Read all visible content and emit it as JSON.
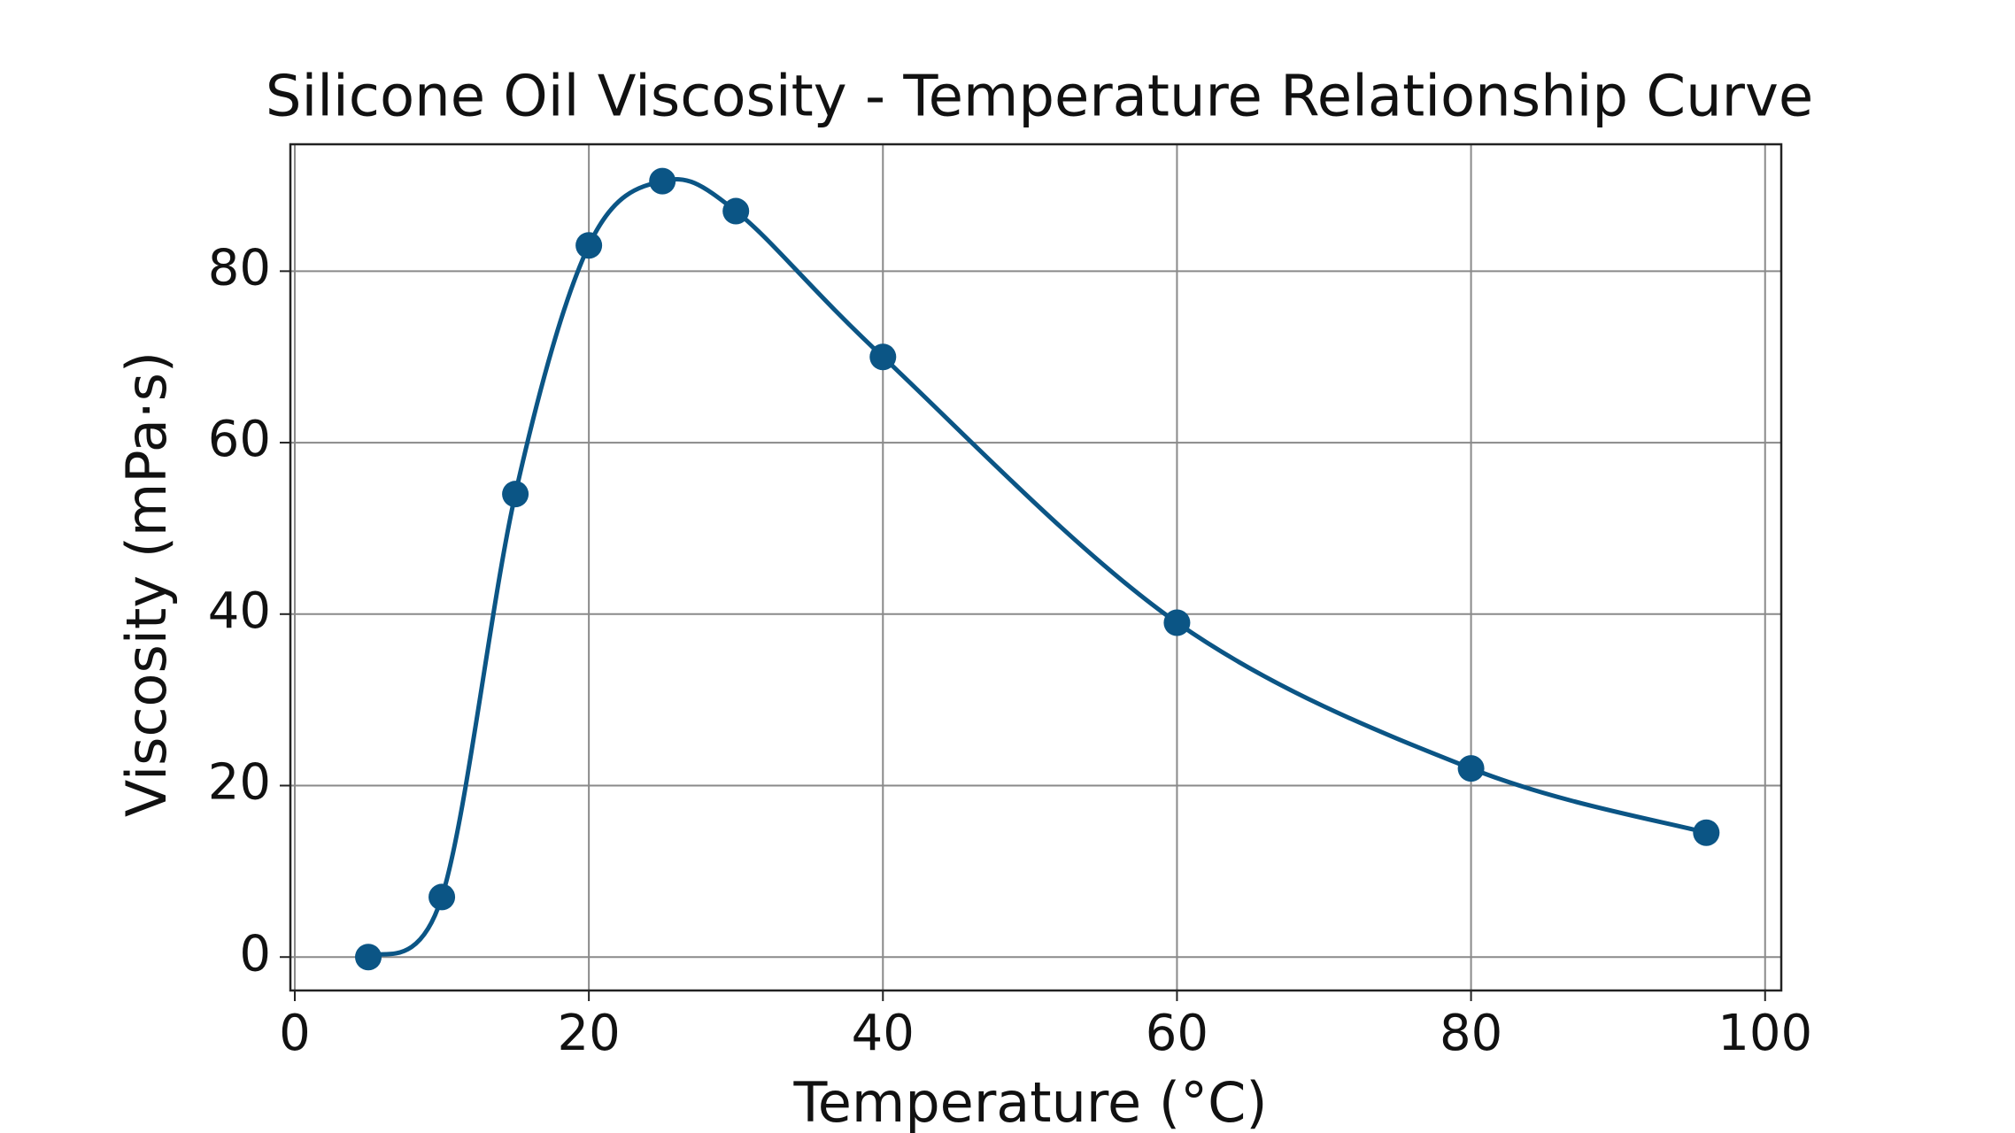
{
  "chart_data": {
    "type": "line",
    "title": "Silicone Oil Viscosity - Temperature Relationship Curve",
    "x_label": "Temperature (°C)",
    "y_label": "Viscosity (mPa·s)",
    "x": [
      5,
      10,
      15,
      20,
      25,
      30,
      40,
      60,
      80,
      96
    ],
    "series": [
      {
        "color": "#0b5585",
        "values": [
          0,
          7,
          54,
          83,
          90.5,
          87,
          70,
          39,
          22,
          14.5
        ]
      }
    ],
    "xlim": [
      -0.3,
      101.1
    ],
    "xticks": [
      0,
      20,
      40,
      60,
      80,
      100
    ],
    "ylim": [
      -3.9,
      94.8
    ],
    "yticks": [
      0,
      20,
      40,
      60,
      80
    ],
    "grid": true,
    "smooth": true,
    "markers": true
  }
}
